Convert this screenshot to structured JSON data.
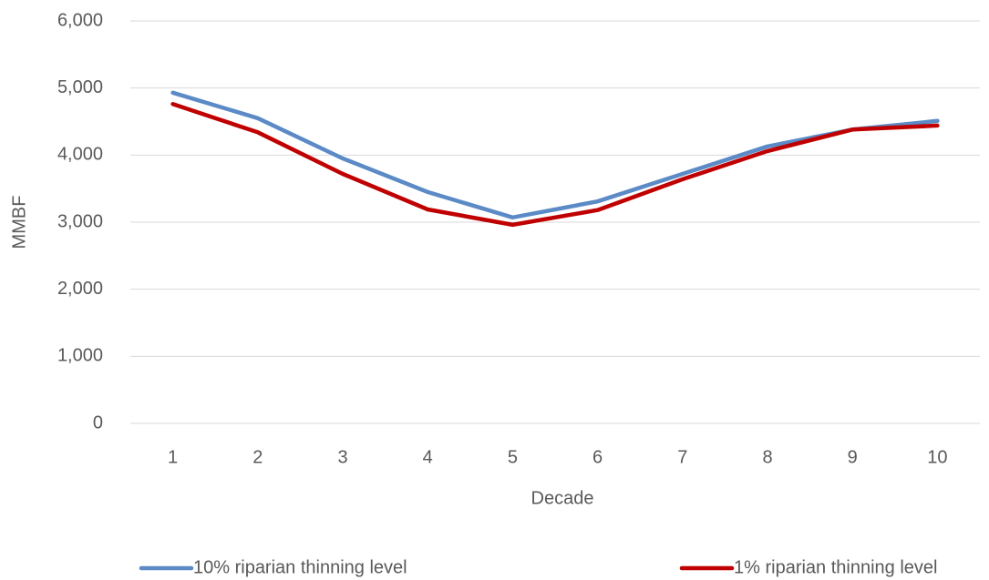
{
  "chart_data": {
    "type": "line",
    "x_label": "Decade",
    "y_label": "MMBF",
    "categories": [
      "1",
      "2",
      "3",
      "4",
      "5",
      "6",
      "7",
      "8",
      "9",
      "10"
    ],
    "series": [
      {
        "name": "10% riparian thinning level",
        "color": "#5b8ac6",
        "values": [
          4930,
          4550,
          3950,
          3450,
          3070,
          3310,
          3720,
          4130,
          4380,
          4510
        ]
      },
      {
        "name": "1% riparian thinning level",
        "color": "#c00000",
        "values": [
          4760,
          4340,
          3720,
          3190,
          2960,
          3180,
          3640,
          4060,
          4380,
          4440
        ]
      }
    ],
    "ylim": [
      0,
      6000
    ],
    "yticks": [
      0,
      {
        "value": 1000,
        "label": "1,000"
      },
      {
        "value": 2000,
        "label": "2,000"
      },
      {
        "value": 3000,
        "label": "3,000"
      },
      {
        "value": 4000,
        "label": "4,000"
      },
      {
        "value": 5000,
        "label": "5,000"
      },
      {
        "value": 6000,
        "label": "6,000"
      }
    ],
    "grid": true,
    "legend": "bottom"
  }
}
